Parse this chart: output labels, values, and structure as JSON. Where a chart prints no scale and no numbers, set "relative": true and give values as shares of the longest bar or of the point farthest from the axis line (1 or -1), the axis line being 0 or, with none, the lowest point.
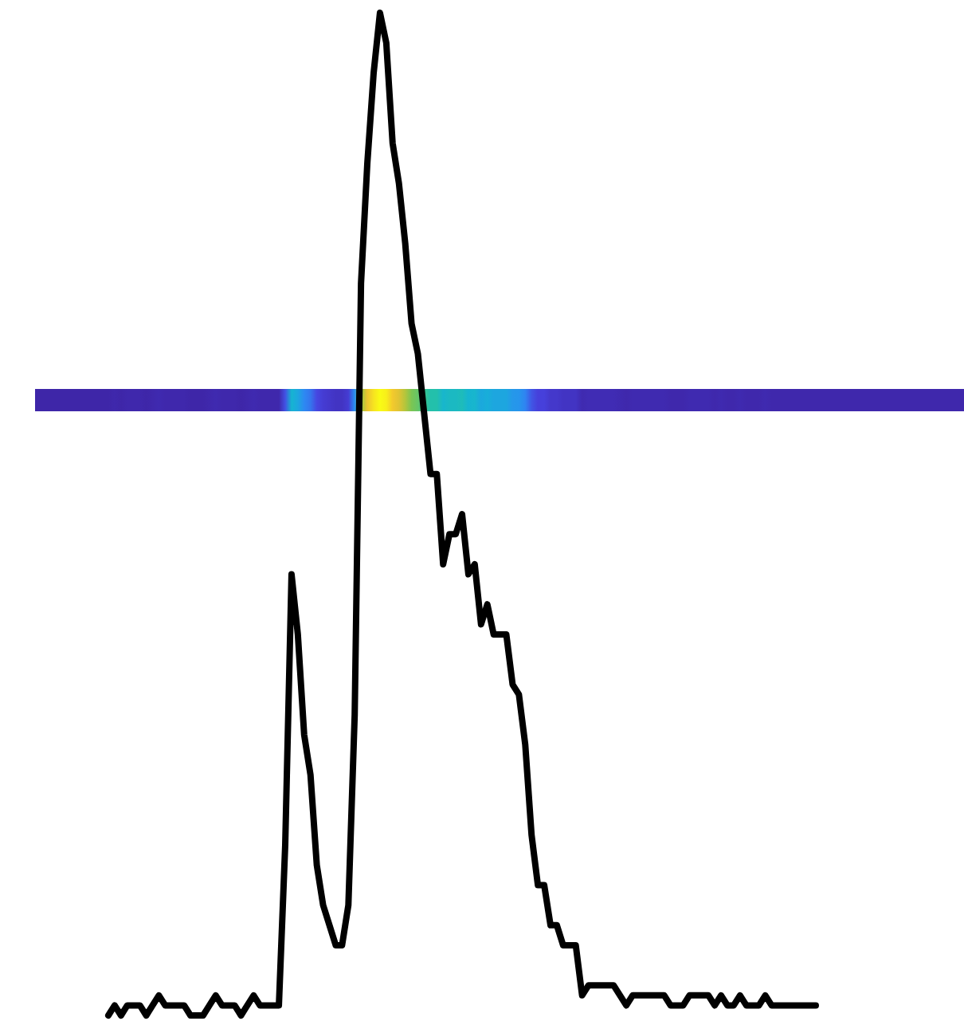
{
  "chart_data": {
    "type": "line",
    "relative": true,
    "categories": [
      null,
      null,
      null,
      null,
      null,
      null,
      null,
      null,
      null,
      null,
      null,
      null,
      null,
      null,
      null,
      null,
      null,
      null,
      null,
      null,
      null,
      null,
      null,
      null,
      null,
      null,
      null,
      null,
      null,
      null,
      null,
      null,
      null,
      null,
      null,
      null,
      null,
      null,
      null,
      null,
      null,
      null,
      null,
      null,
      null,
      null,
      null,
      null,
      null,
      null,
      null,
      null,
      null,
      null,
      null,
      null,
      null,
      null,
      null,
      null,
      null,
      null,
      null,
      null,
      null,
      null,
      null,
      null,
      null,
      null,
      null,
      null,
      null,
      null,
      null,
      null,
      null,
      null,
      null,
      null,
      null,
      null,
      null,
      null,
      null,
      null,
      null,
      null,
      null,
      null,
      null,
      null,
      null,
      null,
      null,
      null,
      null,
      null,
      null,
      null,
      null,
      null,
      null,
      null,
      null,
      null,
      null,
      null,
      null,
      null,
      null,
      null,
      null
    ],
    "series": [
      {
        "color": "#000000",
        "values": [
          0,
          0.01,
          0,
          0.01,
          0.01,
          0.01,
          0,
          0.01,
          0.02,
          0.01,
          0.01,
          0.01,
          0.01,
          0,
          0,
          0,
          0.01,
          0.02,
          0.01,
          0.01,
          0.01,
          0,
          0.01,
          0.02,
          0.01,
          0.01,
          0.01,
          0.01,
          0.17,
          0.44,
          0.38,
          0.28,
          0.24,
          0.15,
          0.11,
          0.09,
          0.07,
          0.07,
          0.11,
          0.3,
          0.73,
          0.85,
          0.94,
          1,
          0.97,
          0.87,
          0.83,
          0.77,
          0.69,
          0.66,
          0.6,
          0.54,
          0.54,
          0.45,
          0.48,
          0.48,
          0.5,
          0.44,
          0.45,
          0.39,
          0.41,
          0.38,
          0.38,
          0.38,
          0.33,
          0.32,
          0.27,
          0.18,
          0.13,
          0.13,
          0.09,
          0.09,
          0.07,
          0.07,
          0.07,
          0.02,
          0.03,
          0.03,
          0.03,
          0.03,
          0.03,
          0.02,
          0.01,
          0.02,
          0.02,
          0.02,
          0.02,
          0.02,
          0.02,
          0.01,
          0.01,
          0.01,
          0.02,
          0.02,
          0.02,
          0.02,
          0.01,
          0.02,
          0.01,
          0.01,
          0.02,
          0.01,
          0.01,
          0.01,
          0.02,
          0.01,
          0.01,
          0.01,
          0.01,
          0.01,
          0.01,
          0.01,
          0.01
        ]
      }
    ]
  }
}
